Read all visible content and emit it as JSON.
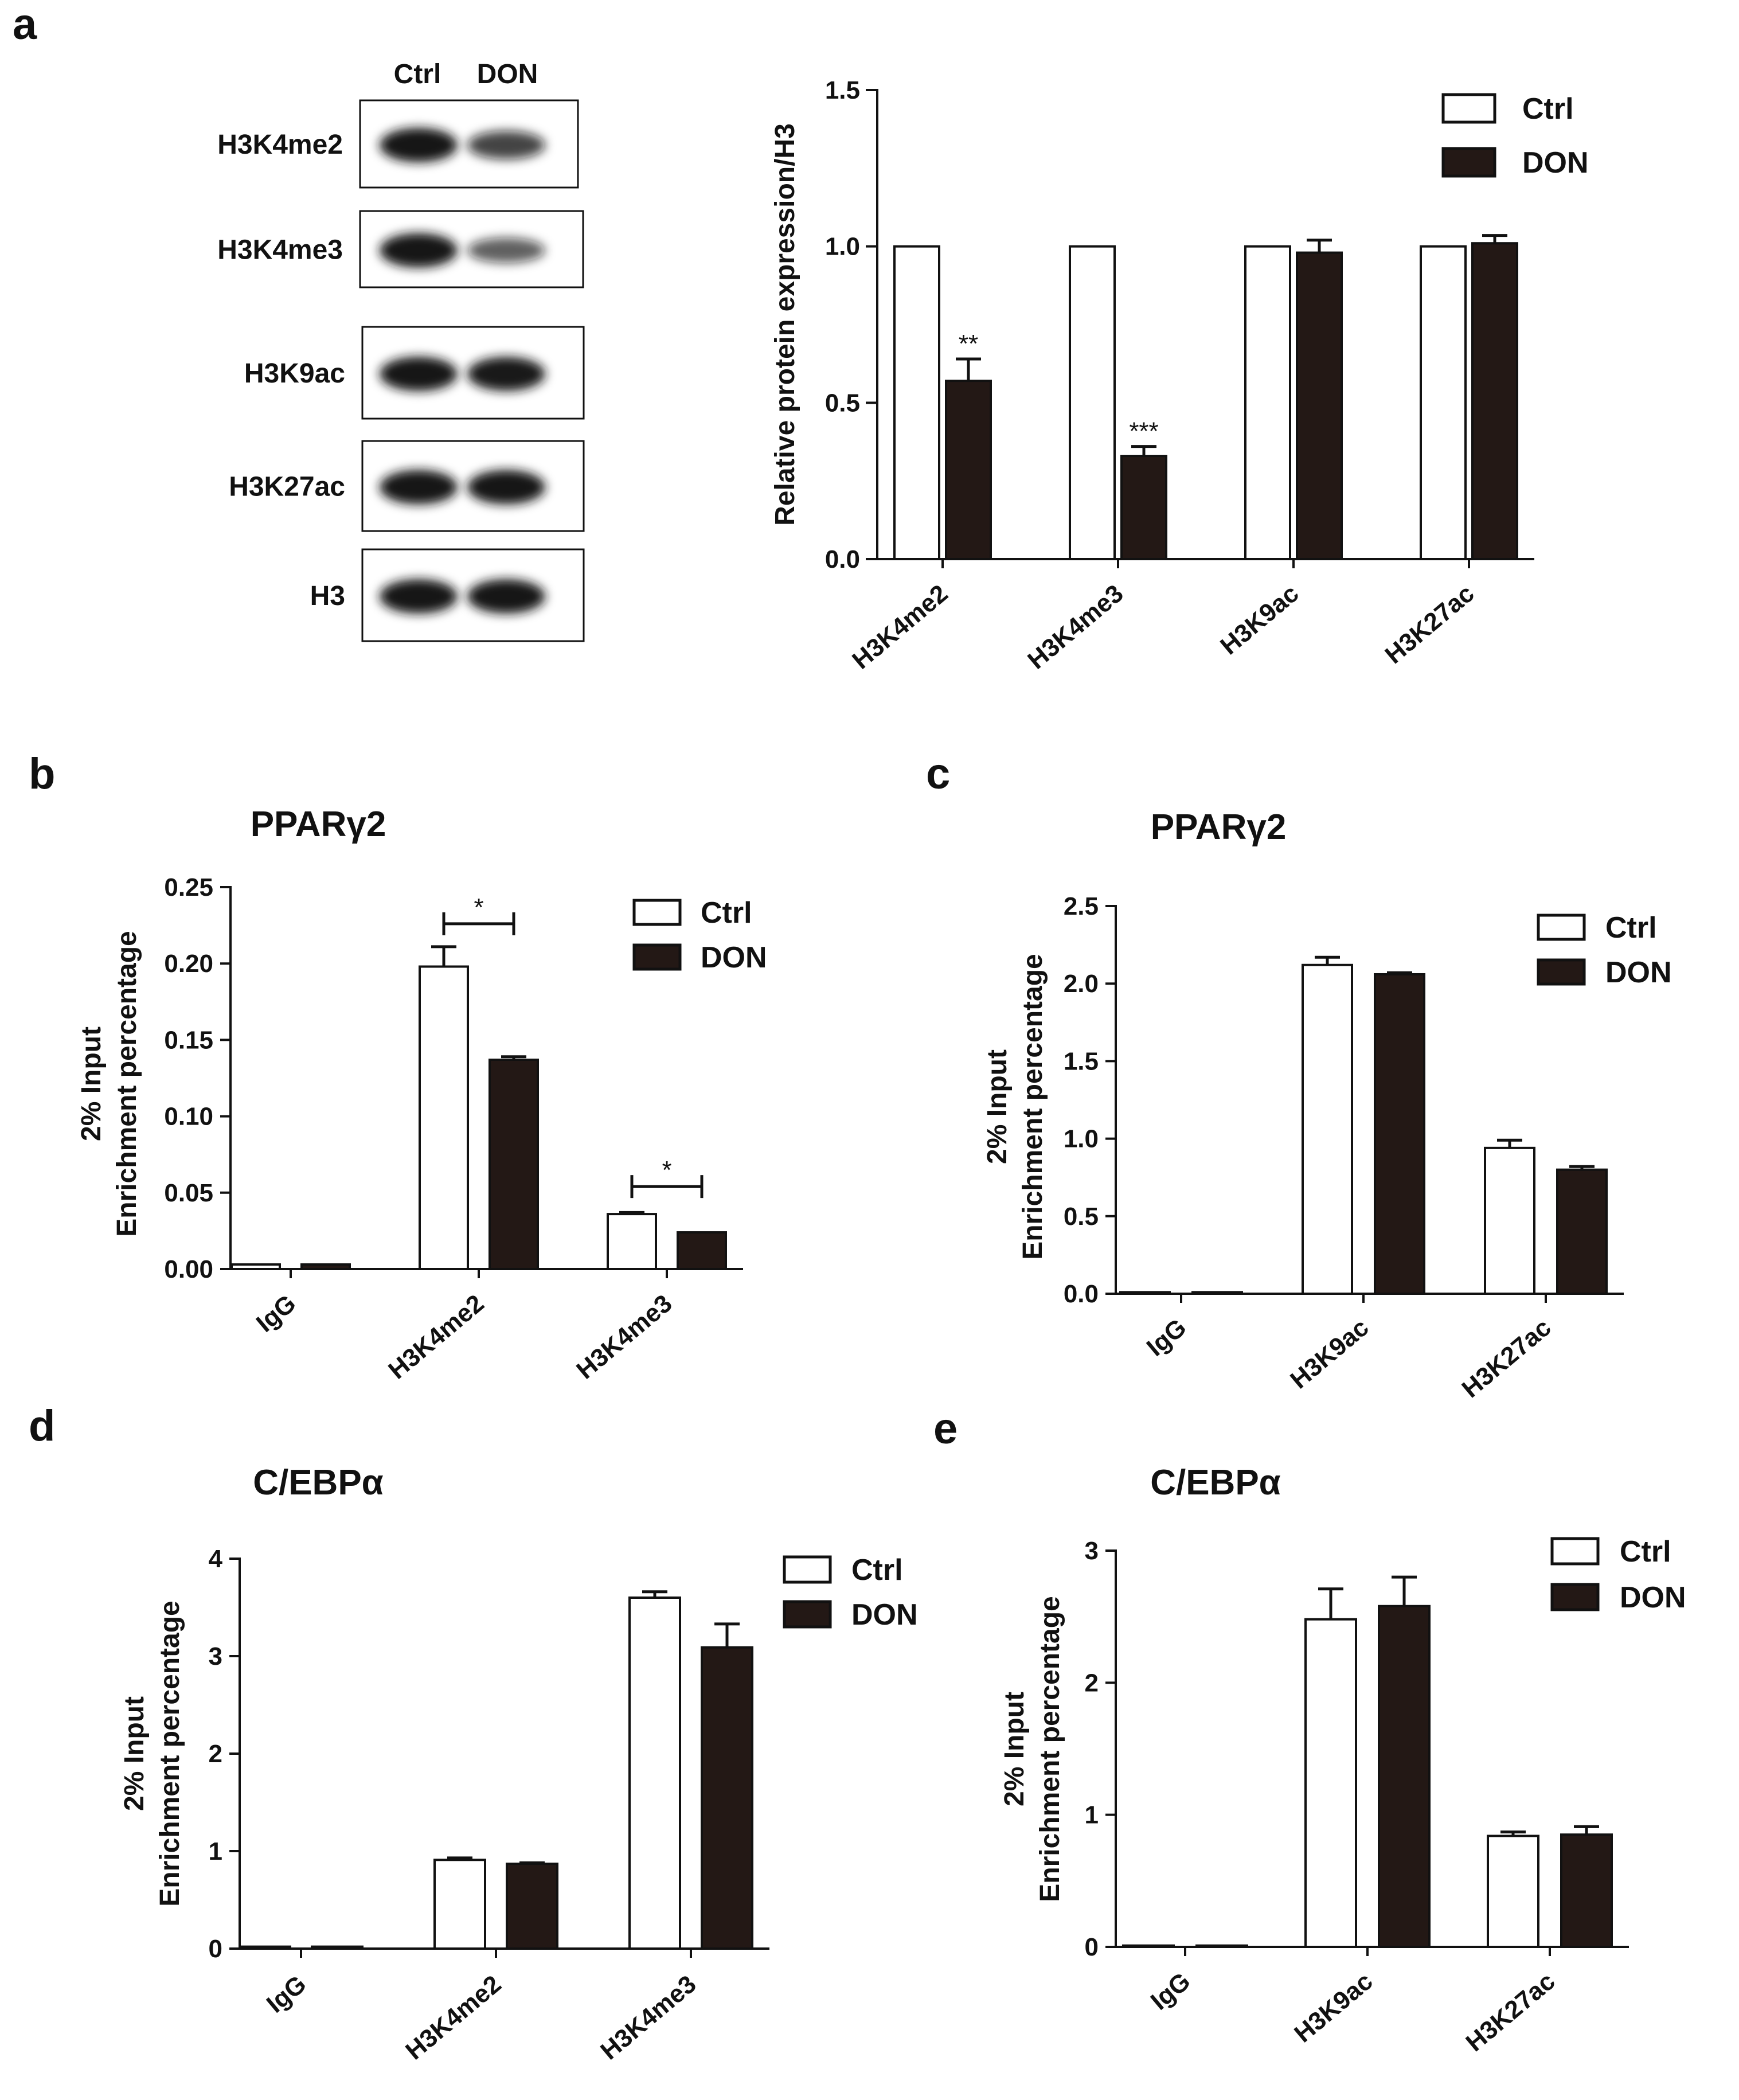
{
  "colors": {
    "ctrl": "#ffffff",
    "don": "#231815",
    "axis": "#111111"
  },
  "blot": {
    "panel_label": "a",
    "columns": [
      "Ctrl",
      "DON"
    ],
    "rows": [
      {
        "label": "H3K4me2",
        "intensity": [
          1.0,
          0.57
        ]
      },
      {
        "label": "H3K4me3",
        "intensity": [
          1.0,
          0.33
        ]
      },
      {
        "label": "H3K9ac",
        "intensity": [
          1.0,
          0.98
        ]
      },
      {
        "label": "H3K27ac",
        "intensity": [
          1.0,
          1.01
        ]
      },
      {
        "label": "H3",
        "intensity": [
          1.0,
          1.0
        ]
      }
    ]
  },
  "chart_data": [
    {
      "id": "a",
      "panel_label": "",
      "type": "bar",
      "title": "",
      "ylabel": "Relative protein expression/H3",
      "xlabel": "",
      "ylim": [
        0,
        1.5
      ],
      "yticks": [
        "0.0",
        "0.5",
        "1.0",
        "1.5"
      ],
      "categories": [
        "H3K4me2",
        "H3K4me3",
        "H3K9ac",
        "H3K27ac"
      ],
      "series": [
        {
          "name": "Ctrl",
          "values": [
            1.0,
            1.0,
            1.0,
            1.0
          ],
          "errors": [
            0,
            0,
            0,
            0
          ]
        },
        {
          "name": "DON",
          "values": [
            0.57,
            0.33,
            0.98,
            1.01
          ],
          "errors": [
            0.07,
            0.03,
            0.04,
            0.025
          ]
        }
      ],
      "annotations": [
        {
          "category": 0,
          "series": 1,
          "text": "**"
        },
        {
          "category": 1,
          "series": 1,
          "text": "***"
        }
      ],
      "legend": "top-right",
      "grid": false
    },
    {
      "id": "b",
      "panel_label": "b",
      "type": "bar",
      "title": "PPARγ2",
      "ylabel": [
        "2% Input",
        "Enrichment percentage"
      ],
      "xlabel": "",
      "ylim": [
        0,
        0.25
      ],
      "yticks": [
        "0.00",
        "0.05",
        "0.10",
        "0.15",
        "0.20",
        "0.25"
      ],
      "categories": [
        "IgG",
        "H3K4me2",
        "H3K4me3"
      ],
      "series": [
        {
          "name": "Ctrl",
          "values": [
            0.003,
            0.198,
            0.036
          ],
          "errors": [
            0,
            0.013,
            0.001
          ]
        },
        {
          "name": "DON",
          "values": [
            0.003,
            0.137,
            0.024
          ],
          "errors": [
            0,
            0.002,
            0
          ]
        }
      ],
      "brackets": [
        {
          "category": 1,
          "value": 0.226,
          "text": "*"
        },
        {
          "category": 2,
          "value": 0.054,
          "text": "*"
        }
      ],
      "legend": "top-right",
      "grid": false
    },
    {
      "id": "c",
      "panel_label": "c",
      "type": "bar",
      "title": "PPARγ2",
      "ylabel": [
        "2% Input",
        "Enrichment percentage"
      ],
      "xlabel": "",
      "ylim": [
        0,
        2.5
      ],
      "yticks": [
        "0.0",
        "0.5",
        "1.0",
        "1.5",
        "2.0",
        "2.5"
      ],
      "categories": [
        "IgG",
        "H3K9ac",
        "H3K27ac"
      ],
      "series": [
        {
          "name": "Ctrl",
          "values": [
            0.01,
            2.12,
            0.94
          ],
          "errors": [
            0,
            0.05,
            0.05
          ]
        },
        {
          "name": "DON",
          "values": [
            0.01,
            2.06,
            0.8
          ],
          "errors": [
            0,
            0.01,
            0.02
          ]
        }
      ],
      "legend": "top-right",
      "grid": false
    },
    {
      "id": "d",
      "panel_label": "d",
      "type": "bar",
      "title": "C/EBPα",
      "ylabel": [
        "2% Input",
        "Enrichment percentage"
      ],
      "xlabel": "",
      "ylim": [
        0,
        4
      ],
      "yticks": [
        "0",
        "1",
        "2",
        "3",
        "4"
      ],
      "categories": [
        "IgG",
        "H3K4me2",
        "H3K4me3"
      ],
      "series": [
        {
          "name": "Ctrl",
          "values": [
            0.02,
            0.91,
            3.6
          ],
          "errors": [
            0,
            0.02,
            0.06
          ]
        },
        {
          "name": "DON",
          "values": [
            0.02,
            0.87,
            3.09
          ],
          "errors": [
            0,
            0.01,
            0.24
          ]
        }
      ],
      "legend": "top-right",
      "grid": false
    },
    {
      "id": "e",
      "panel_label": "e",
      "type": "bar",
      "title": "C/EBPα",
      "ylabel": [
        "2% Input",
        "Enrichment percentage"
      ],
      "xlabel": "",
      "ylim": [
        0,
        3
      ],
      "yticks": [
        "0",
        "1",
        "2",
        "3"
      ],
      "categories": [
        "IgG",
        "H3K9ac",
        "H3K27ac"
      ],
      "series": [
        {
          "name": "Ctrl",
          "values": [
            0.01,
            2.48,
            0.84
          ],
          "errors": [
            0,
            0.23,
            0.03
          ]
        },
        {
          "name": "DON",
          "values": [
            0.01,
            2.58,
            0.85
          ],
          "errors": [
            0,
            0.22,
            0.06
          ]
        }
      ],
      "legend": "top-right",
      "grid": false
    }
  ]
}
